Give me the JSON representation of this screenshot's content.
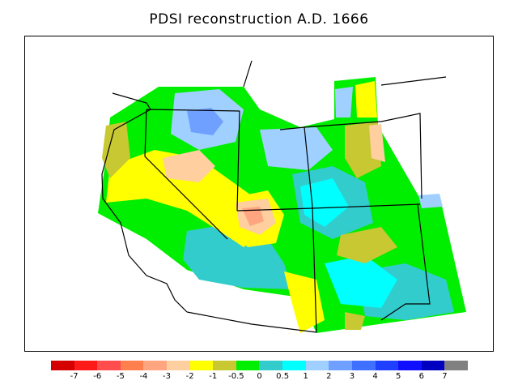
{
  "title": "PDSI reconstruction A.D. 1666",
  "colorbar": {
    "colors": [
      "#d40000",
      "#ff1a1a",
      "#ff4d4d",
      "#ff7f4d",
      "#ffa57f",
      "#ffcf9f",
      "#ffff00",
      "#c8c832",
      "#00ee00",
      "#33cccc",
      "#00ffff",
      "#a0d0ff",
      "#70a0ff",
      "#4070ff",
      "#2040ff",
      "#1010ff",
      "#0000c0",
      "#808080"
    ],
    "labels": [
      "-7",
      "-6",
      "-5",
      "-4",
      "-3",
      "-2",
      "-1",
      "-0.5",
      "0",
      "0.5",
      "1",
      "2",
      "3",
      "4",
      "5",
      "6",
      "7"
    ]
  },
  "legend_colors": {
    "dry_extreme": "#d40000",
    "wet_extreme": "#0000c0",
    "no_data": "#808080",
    "ocean": "#ffffff"
  }
}
